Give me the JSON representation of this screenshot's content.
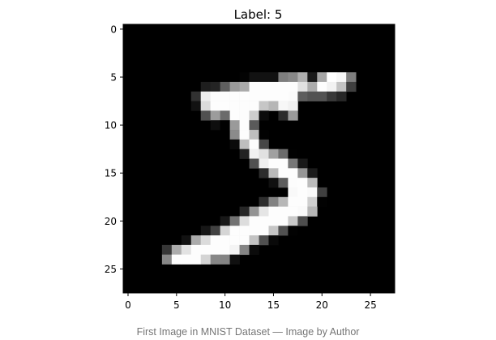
{
  "caption": "First Image in MNIST Dataset — Image by Author",
  "colors": {
    "background": "#ffffff",
    "caption": "#757575",
    "axis": "#000000",
    "colormap": "gray"
  },
  "chart_data": {
    "type": "heatmap",
    "title": "Label: 5",
    "xlabel": "",
    "ylabel": "",
    "colormap": "gray",
    "grid": false,
    "xlim": [
      -0.5,
      27.5
    ],
    "ylim": [
      27.5,
      -0.5
    ],
    "xticks": [
      0,
      5,
      10,
      15,
      20,
      25
    ],
    "yticks": [
      0,
      5,
      10,
      15,
      20,
      25
    ],
    "values": [
      [
        0,
        0,
        0,
        0,
        0,
        0,
        0,
        0,
        0,
        0,
        0,
        0,
        0,
        0,
        0,
        0,
        0,
        0,
        0,
        0,
        0,
        0,
        0,
        0,
        0,
        0,
        0,
        0
      ],
      [
        0,
        0,
        0,
        0,
        0,
        0,
        0,
        0,
        0,
        0,
        0,
        0,
        0,
        0,
        0,
        0,
        0,
        0,
        0,
        0,
        0,
        0,
        0,
        0,
        0,
        0,
        0,
        0
      ],
      [
        0,
        0,
        0,
        0,
        0,
        0,
        0,
        0,
        0,
        0,
        0,
        0,
        0,
        0,
        0,
        0,
        0,
        0,
        0,
        0,
        0,
        0,
        0,
        0,
        0,
        0,
        0,
        0
      ],
      [
        0,
        0,
        0,
        0,
        0,
        0,
        0,
        0,
        0,
        0,
        0,
        0,
        0,
        0,
        0,
        0,
        0,
        0,
        0,
        0,
        0,
        0,
        0,
        0,
        0,
        0,
        0,
        0
      ],
      [
        0,
        0,
        0,
        0,
        0,
        0,
        0,
        0,
        0,
        0,
        0,
        0,
        0,
        0,
        0,
        0,
        0,
        0,
        0,
        0,
        0,
        0,
        0,
        0,
        0,
        0,
        0,
        0
      ],
      [
        0,
        0,
        0,
        0,
        0,
        0,
        0,
        0,
        0,
        0,
        0,
        0,
        3,
        18,
        18,
        18,
        126,
        136,
        175,
        26,
        166,
        255,
        247,
        127,
        0,
        0,
        0,
        0
      ],
      [
        0,
        0,
        0,
        0,
        0,
        0,
        0,
        0,
        30,
        36,
        94,
        154,
        170,
        253,
        253,
        253,
        253,
        253,
        225,
        172,
        253,
        242,
        195,
        64,
        0,
        0,
        0,
        0
      ],
      [
        0,
        0,
        0,
        0,
        0,
        0,
        0,
        49,
        238,
        253,
        253,
        253,
        253,
        253,
        253,
        253,
        253,
        251,
        93,
        82,
        82,
        56,
        39,
        0,
        0,
        0,
        0,
        0
      ],
      [
        0,
        0,
        0,
        0,
        0,
        0,
        0,
        18,
        219,
        253,
        253,
        253,
        253,
        253,
        198,
        182,
        247,
        241,
        0,
        0,
        0,
        0,
        0,
        0,
        0,
        0,
        0,
        0
      ],
      [
        0,
        0,
        0,
        0,
        0,
        0,
        0,
        0,
        80,
        156,
        107,
        253,
        253,
        205,
        11,
        0,
        43,
        154,
        0,
        0,
        0,
        0,
        0,
        0,
        0,
        0,
        0,
        0
      ],
      [
        0,
        0,
        0,
        0,
        0,
        0,
        0,
        0,
        0,
        14,
        1,
        154,
        253,
        90,
        0,
        0,
        0,
        0,
        0,
        0,
        0,
        0,
        0,
        0,
        0,
        0,
        0,
        0
      ],
      [
        0,
        0,
        0,
        0,
        0,
        0,
        0,
        0,
        0,
        0,
        0,
        139,
        253,
        190,
        2,
        0,
        0,
        0,
        0,
        0,
        0,
        0,
        0,
        0,
        0,
        0,
        0,
        0
      ],
      [
        0,
        0,
        0,
        0,
        0,
        0,
        0,
        0,
        0,
        0,
        0,
        11,
        190,
        253,
        70,
        0,
        0,
        0,
        0,
        0,
        0,
        0,
        0,
        0,
        0,
        0,
        0,
        0
      ],
      [
        0,
        0,
        0,
        0,
        0,
        0,
        0,
        0,
        0,
        0,
        0,
        0,
        35,
        241,
        225,
        160,
        108,
        1,
        0,
        0,
        0,
        0,
        0,
        0,
        0,
        0,
        0,
        0
      ],
      [
        0,
        0,
        0,
        0,
        0,
        0,
        0,
        0,
        0,
        0,
        0,
        0,
        0,
        81,
        240,
        253,
        253,
        119,
        25,
        0,
        0,
        0,
        0,
        0,
        0,
        0,
        0,
        0
      ],
      [
        0,
        0,
        0,
        0,
        0,
        0,
        0,
        0,
        0,
        0,
        0,
        0,
        0,
        0,
        45,
        186,
        253,
        253,
        150,
        27,
        0,
        0,
        0,
        0,
        0,
        0,
        0,
        0
      ],
      [
        0,
        0,
        0,
        0,
        0,
        0,
        0,
        0,
        0,
        0,
        0,
        0,
        0,
        0,
        0,
        16,
        93,
        252,
        253,
        187,
        0,
        0,
        0,
        0,
        0,
        0,
        0,
        0
      ],
      [
        0,
        0,
        0,
        0,
        0,
        0,
        0,
        0,
        0,
        0,
        0,
        0,
        0,
        0,
        0,
        0,
        0,
        249,
        253,
        249,
        64,
        0,
        0,
        0,
        0,
        0,
        0,
        0
      ],
      [
        0,
        0,
        0,
        0,
        0,
        0,
        0,
        0,
        0,
        0,
        0,
        0,
        0,
        0,
        46,
        130,
        183,
        253,
        253,
        207,
        2,
        0,
        0,
        0,
        0,
        0,
        0,
        0
      ],
      [
        0,
        0,
        0,
        0,
        0,
        0,
        0,
        0,
        0,
        0,
        0,
        0,
        39,
        148,
        229,
        253,
        253,
        253,
        250,
        182,
        0,
        0,
        0,
        0,
        0,
        0,
        0,
        0
      ],
      [
        0,
        0,
        0,
        0,
        0,
        0,
        0,
        0,
        0,
        0,
        24,
        114,
        221,
        253,
        253,
        253,
        253,
        201,
        78,
        0,
        0,
        0,
        0,
        0,
        0,
        0,
        0,
        0
      ],
      [
        0,
        0,
        0,
        0,
        0,
        0,
        0,
        0,
        23,
        66,
        213,
        253,
        253,
        253,
        253,
        198,
        81,
        2,
        0,
        0,
        0,
        0,
        0,
        0,
        0,
        0,
        0,
        0
      ],
      [
        0,
        0,
        0,
        0,
        0,
        0,
        18,
        171,
        219,
        253,
        253,
        253,
        253,
        195,
        80,
        9,
        0,
        0,
        0,
        0,
        0,
        0,
        0,
        0,
        0,
        0,
        0,
        0
      ],
      [
        0,
        0,
        0,
        0,
        55,
        172,
        226,
        253,
        253,
        253,
        253,
        244,
        133,
        11,
        0,
        0,
        0,
        0,
        0,
        0,
        0,
        0,
        0,
        0,
        0,
        0,
        0,
        0
      ],
      [
        0,
        0,
        0,
        0,
        136,
        253,
        253,
        253,
        212,
        135,
        132,
        16,
        0,
        0,
        0,
        0,
        0,
        0,
        0,
        0,
        0,
        0,
        0,
        0,
        0,
        0,
        0,
        0
      ],
      [
        0,
        0,
        0,
        0,
        0,
        0,
        0,
        0,
        0,
        0,
        0,
        0,
        0,
        0,
        0,
        0,
        0,
        0,
        0,
        0,
        0,
        0,
        0,
        0,
        0,
        0,
        0,
        0
      ],
      [
        0,
        0,
        0,
        0,
        0,
        0,
        0,
        0,
        0,
        0,
        0,
        0,
        0,
        0,
        0,
        0,
        0,
        0,
        0,
        0,
        0,
        0,
        0,
        0,
        0,
        0,
        0,
        0
      ],
      [
        0,
        0,
        0,
        0,
        0,
        0,
        0,
        0,
        0,
        0,
        0,
        0,
        0,
        0,
        0,
        0,
        0,
        0,
        0,
        0,
        0,
        0,
        0,
        0,
        0,
        0,
        0,
        0
      ]
    ]
  }
}
